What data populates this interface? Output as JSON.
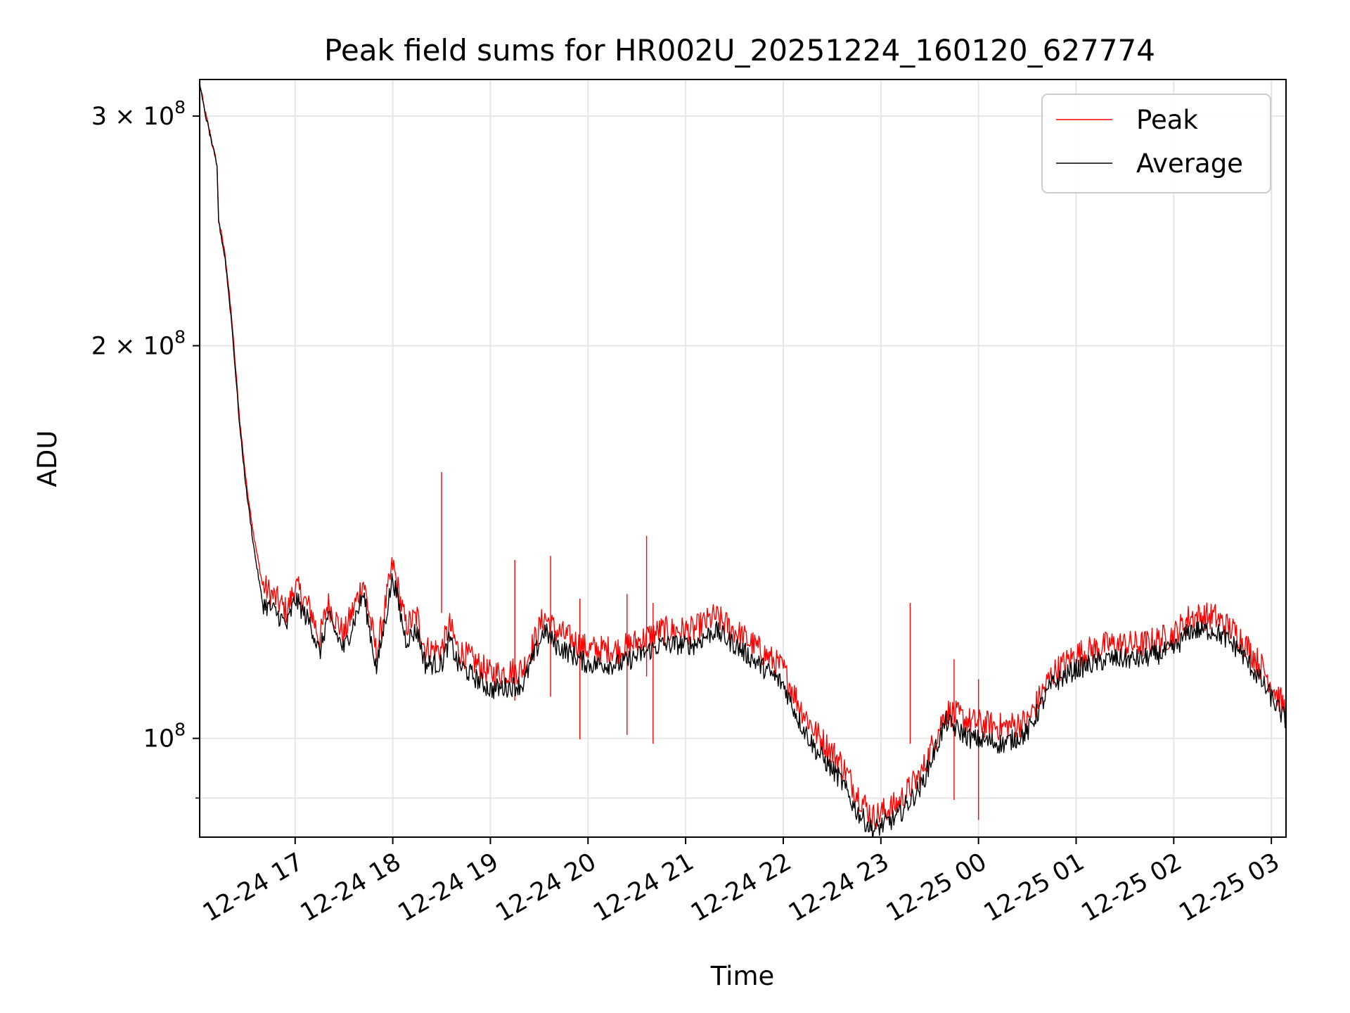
{
  "chart_data": {
    "type": "line",
    "title": "Peak field sums for HR002U_20251224_160120_627774",
    "xlabel": "Time",
    "ylabel": "ADU",
    "yscale": "log",
    "xlim": [
      "2025-12-24T16:01:20",
      "2025-12-25T03:09:00"
    ],
    "ylim": [
      84000000,
      320000000
    ],
    "x_ticks": [
      {
        "value": "2025-12-24T17:00:00",
        "label": "12-24 17"
      },
      {
        "value": "2025-12-24T18:00:00",
        "label": "12-24 18"
      },
      {
        "value": "2025-12-24T19:00:00",
        "label": "12-24 19"
      },
      {
        "value": "2025-12-24T20:00:00",
        "label": "12-24 20"
      },
      {
        "value": "2025-12-24T21:00:00",
        "label": "12-24 21"
      },
      {
        "value": "2025-12-24T22:00:00",
        "label": "12-24 22"
      },
      {
        "value": "2025-12-24T23:00:00",
        "label": "12-24 23"
      },
      {
        "value": "2025-12-25T00:00:00",
        "label": "12-25 00"
      },
      {
        "value": "2025-12-25T01:00:00",
        "label": "12-25 01"
      },
      {
        "value": "2025-12-25T02:00:00",
        "label": "12-25 02"
      },
      {
        "value": "2025-12-25T03:00:00",
        "label": "12-25 03"
      }
    ],
    "y_major_ticks": [
      {
        "value": 100000000,
        "base": "10",
        "exp": "8"
      },
      {
        "value": 200000000,
        "base": "2 × 10",
        "exp": "8"
      },
      {
        "value": 300000000,
        "base": "3 × 10",
        "exp": "8"
      }
    ],
    "y_minor_ticks": [
      90000000
    ],
    "grid": true,
    "legend": {
      "position": "top-right"
    },
    "series": [
      {
        "name": "Peak",
        "color": "#ff0000",
        "points": [
          [
            "2025-12-24T16:01:20",
            318000000
          ],
          [
            "2025-12-24T16:04:00",
            305000000
          ],
          [
            "2025-12-24T16:08:00",
            290000000
          ],
          [
            "2025-12-24T16:12:00",
            275000000
          ],
          [
            "2025-12-24T16:13:00",
            250000000
          ],
          [
            "2025-12-24T16:17:00",
            235000000
          ],
          [
            "2025-12-24T16:21:00",
            210000000
          ],
          [
            "2025-12-24T16:26:00",
            175000000
          ],
          [
            "2025-12-24T16:30:00",
            157000000
          ],
          [
            "2025-12-24T16:35:00",
            142000000
          ],
          [
            "2025-12-24T16:40:00",
            131000000
          ],
          [
            "2025-12-24T16:48:00",
            128000000
          ],
          [
            "2025-12-24T16:55:00",
            125000000
          ],
          [
            "2025-12-24T17:00:00",
            131000000
          ],
          [
            "2025-12-24T17:10:00",
            125000000
          ],
          [
            "2025-12-24T17:15:00",
            119000000
          ],
          [
            "2025-12-24T17:20:00",
            127000000
          ],
          [
            "2025-12-24T17:30:00",
            120000000
          ],
          [
            "2025-12-24T17:42:00",
            132000000
          ],
          [
            "2025-12-24T17:50:00",
            116000000
          ],
          [
            "2025-12-24T18:00:00",
            136000000
          ],
          [
            "2025-12-24T18:08:00",
            122000000
          ],
          [
            "2025-12-24T18:15:00",
            124000000
          ],
          [
            "2025-12-24T18:20:00",
            117000000
          ],
          [
            "2025-12-24T18:30:00",
            117000000
          ],
          [
            "2025-12-24T18:35:00",
            122000000
          ],
          [
            "2025-12-24T18:40:00",
            117000000
          ],
          [
            "2025-12-24T19:00:00",
            112000000
          ],
          [
            "2025-12-24T19:20:00",
            113000000
          ],
          [
            "2025-12-24T19:33:00",
            124000000
          ],
          [
            "2025-12-24T19:40:00",
            121000000
          ],
          [
            "2025-12-24T20:00:00",
            117000000
          ],
          [
            "2025-12-24T20:20:00",
            117000000
          ],
          [
            "2025-12-24T20:45:00",
            121000000
          ],
          [
            "2025-12-24T21:05:00",
            121000000
          ],
          [
            "2025-12-24T21:18:00",
            124000000
          ],
          [
            "2025-12-24T21:30:00",
            121000000
          ],
          [
            "2025-12-24T21:45:00",
            117000000
          ],
          [
            "2025-12-24T22:00:00",
            113000000
          ],
          [
            "2025-12-24T22:10:00",
            106000000
          ],
          [
            "2025-12-24T22:20:00",
            101000000
          ],
          [
            "2025-12-24T22:35:00",
            96000000
          ],
          [
            "2025-12-24T22:45:00",
            91000000
          ],
          [
            "2025-12-24T22:55:00",
            87000000
          ],
          [
            "2025-12-24T23:10:00",
            89000000
          ],
          [
            "2025-12-24T23:25:00",
            94000000
          ],
          [
            "2025-12-24T23:40:00",
            105000000
          ],
          [
            "2025-12-24T23:55:00",
            103000000
          ],
          [
            "2025-12-25T00:15:00",
            102000000
          ],
          [
            "2025-12-25T00:30:00",
            103000000
          ],
          [
            "2025-12-25T00:45:00",
            112000000
          ],
          [
            "2025-12-25T01:00:00",
            116000000
          ],
          [
            "2025-12-25T01:20:00",
            118000000
          ],
          [
            "2025-12-25T01:40:00",
            118000000
          ],
          [
            "2025-12-25T02:00:00",
            120000000
          ],
          [
            "2025-12-25T02:10:00",
            124000000
          ],
          [
            "2025-12-25T02:25:00",
            124000000
          ],
          [
            "2025-12-25T02:40:00",
            120000000
          ],
          [
            "2025-12-25T02:55:00",
            113000000
          ],
          [
            "2025-12-25T03:09:00",
            105000000
          ]
        ],
        "spikes": [
          [
            "2025-12-24T18:30:00",
            160000000
          ],
          [
            "2025-12-24T19:15:00",
            137000000
          ],
          [
            "2025-12-24T19:37:00",
            138000000
          ],
          [
            "2025-12-24T19:55:00",
            128000000
          ],
          [
            "2025-12-24T20:24:00",
            129000000
          ],
          [
            "2025-12-24T20:36:00",
            143000000
          ],
          [
            "2025-12-24T20:40:00",
            127000000
          ],
          [
            "2025-12-24T23:18:00",
            127000000
          ],
          [
            "2025-12-24T23:45:00",
            115000000
          ],
          [
            "2025-12-25T00:00:00",
            111000000
          ]
        ]
      },
      {
        "name": "Average",
        "color": "#000000",
        "points": [
          [
            "2025-12-24T16:01:20",
            317000000
          ],
          [
            "2025-12-24T16:04:00",
            304000000
          ],
          [
            "2025-12-24T16:08:00",
            289000000
          ],
          [
            "2025-12-24T16:12:00",
            274000000
          ],
          [
            "2025-12-24T16:13:00",
            249000000
          ],
          [
            "2025-12-24T16:17:00",
            233000000
          ],
          [
            "2025-12-24T16:21:00",
            208000000
          ],
          [
            "2025-12-24T16:26:00",
            173000000
          ],
          [
            "2025-12-24T16:30:00",
            155000000
          ],
          [
            "2025-12-24T16:35:00",
            139000000
          ],
          [
            "2025-12-24T16:40:00",
            127000000
          ],
          [
            "2025-12-24T16:48:00",
            125000000
          ],
          [
            "2025-12-24T16:55:00",
            122000000
          ],
          [
            "2025-12-24T17:00:00",
            128000000
          ],
          [
            "2025-12-24T17:10:00",
            122000000
          ],
          [
            "2025-12-24T17:15:00",
            116000000
          ],
          [
            "2025-12-24T17:20:00",
            124000000
          ],
          [
            "2025-12-24T17:30:00",
            117000000
          ],
          [
            "2025-12-24T17:42:00",
            129000000
          ],
          [
            "2025-12-24T17:50:00",
            113000000
          ],
          [
            "2025-12-24T18:00:00",
            133000000
          ],
          [
            "2025-12-24T18:08:00",
            119000000
          ],
          [
            "2025-12-24T18:15:00",
            121000000
          ],
          [
            "2025-12-24T18:20:00",
            114000000
          ],
          [
            "2025-12-24T18:30:00",
            114000000
          ],
          [
            "2025-12-24T18:35:00",
            119000000
          ],
          [
            "2025-12-24T18:40:00",
            114000000
          ],
          [
            "2025-12-24T19:00:00",
            109000000
          ],
          [
            "2025-12-24T19:20:00",
            110000000
          ],
          [
            "2025-12-24T19:33:00",
            121000000
          ],
          [
            "2025-12-24T19:40:00",
            118000000
          ],
          [
            "2025-12-24T20:00:00",
            114000000
          ],
          [
            "2025-12-24T20:20:00",
            114000000
          ],
          [
            "2025-12-24T20:45:00",
            118000000
          ],
          [
            "2025-12-24T21:05:00",
            118000000
          ],
          [
            "2025-12-24T21:18:00",
            121000000
          ],
          [
            "2025-12-24T21:30:00",
            118000000
          ],
          [
            "2025-12-24T21:45:00",
            114000000
          ],
          [
            "2025-12-24T22:00:00",
            110000000
          ],
          [
            "2025-12-24T22:10:00",
            103000000
          ],
          [
            "2025-12-24T22:20:00",
            98000000
          ],
          [
            "2025-12-24T22:35:00",
            93000000
          ],
          [
            "2025-12-24T22:45:00",
            88000000
          ],
          [
            "2025-12-24T22:55:00",
            85000000
          ],
          [
            "2025-12-24T23:10:00",
            87000000
          ],
          [
            "2025-12-24T23:25:00",
            92000000
          ],
          [
            "2025-12-24T23:40:00",
            103000000
          ],
          [
            "2025-12-24T23:55:00",
            100000000
          ],
          [
            "2025-12-25T00:15:00",
            99000000
          ],
          [
            "2025-12-25T00:30:00",
            101000000
          ],
          [
            "2025-12-25T00:45:00",
            110000000
          ],
          [
            "2025-12-25T01:00:00",
            113000000
          ],
          [
            "2025-12-25T01:20:00",
            115000000
          ],
          [
            "2025-12-25T01:40:00",
            115000000
          ],
          [
            "2025-12-25T02:00:00",
            117000000
          ],
          [
            "2025-12-25T02:10:00",
            121000000
          ],
          [
            "2025-12-25T02:25:00",
            121000000
          ],
          [
            "2025-12-25T02:40:00",
            117000000
          ],
          [
            "2025-12-25T02:55:00",
            110000000
          ],
          [
            "2025-12-25T03:09:00",
            103000000
          ]
        ]
      }
    ]
  }
}
